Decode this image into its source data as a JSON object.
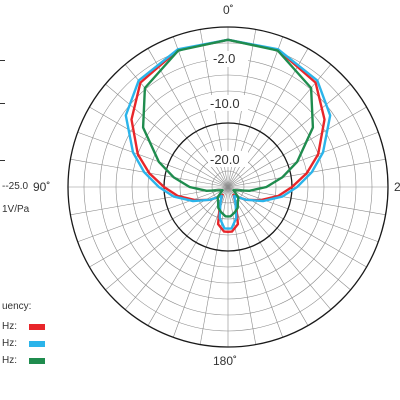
{
  "chart_data": {
    "type": "polar",
    "grid": true,
    "angle_labels": {
      "top": "0˚",
      "left": "90˚",
      "bottom": "180˚",
      "right": "2"
    },
    "ring_labels": [
      "-2.0",
      "-10.0",
      "-20.0"
    ],
    "left_text": {
      "scale": "--25.0",
      "unit": "1V/Pa"
    },
    "legend": {
      "title": "uency:",
      "placement": "bottom-left",
      "entries": [
        {
          "label": "Hz:",
          "color": "#e8262a"
        },
        {
          "label": "Hz:",
          "color": "#2bb4ea"
        },
        {
          "label": "Hz:",
          "color": "#1f8c4e"
        }
      ]
    },
    "rlim": [
      -25,
      0
    ],
    "series": [
      {
        "color": "#e8262a",
        "points": [
          [
            0,
            -2
          ],
          [
            20,
            -2.2
          ],
          [
            40,
            -3.7
          ],
          [
            55,
            -6.6
          ],
          [
            70,
            -10
          ],
          [
            80,
            -12.5
          ],
          [
            90,
            -15
          ],
          [
            100,
            -17
          ],
          [
            112,
            -19.5
          ],
          [
            125,
            -21.5
          ],
          [
            135,
            -22.7
          ],
          [
            145,
            -23.5
          ],
          [
            155,
            -22
          ],
          [
            165,
            -19
          ],
          [
            175,
            -18
          ],
          [
            180,
            -18
          ]
        ]
      },
      {
        "color": "#2bb4ea",
        "points": [
          [
            0,
            -2
          ],
          [
            20,
            -2.1
          ],
          [
            40,
            -3.3
          ],
          [
            55,
            -5.5
          ],
          [
            70,
            -9.2
          ],
          [
            80,
            -11.7
          ],
          [
            90,
            -14.2
          ],
          [
            100,
            -16.4
          ],
          [
            112,
            -19.1
          ],
          [
            125,
            -21.5
          ],
          [
            135,
            -22.7
          ],
          [
            145,
            -23.3
          ],
          [
            155,
            -22.2
          ],
          [
            165,
            -20
          ],
          [
            175,
            -18.5
          ],
          [
            180,
            -18.5
          ]
        ]
      },
      {
        "color": "#1f8c4e",
        "points": [
          [
            0,
            -2
          ],
          [
            20,
            -2.3
          ],
          [
            40,
            -4.8
          ],
          [
            55,
            -8.8
          ],
          [
            70,
            -13.5
          ],
          [
            80,
            -16.4
          ],
          [
            90,
            -19
          ],
          [
            100,
            -21.6
          ],
          [
            110,
            -23.5
          ],
          [
            120,
            -24
          ],
          [
            135,
            -22.7
          ],
          [
            145,
            -22.3
          ],
          [
            155,
            -21.4
          ],
          [
            165,
            -20.9
          ],
          [
            175,
            -20.4
          ],
          [
            180,
            -20.4
          ]
        ]
      }
    ]
  }
}
